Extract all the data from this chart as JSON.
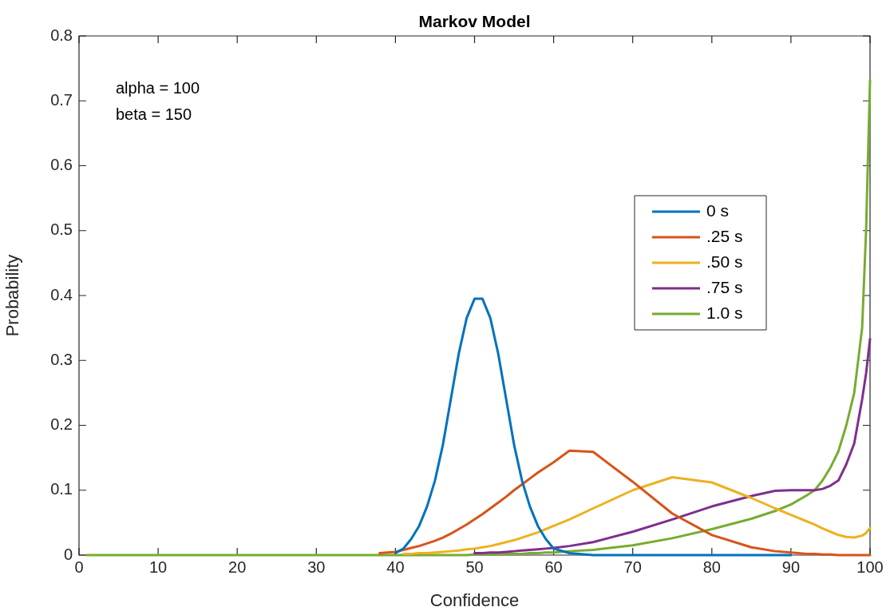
{
  "chart_data": {
    "type": "line",
    "title": "Markov Model",
    "xlabel": "Confidence",
    "ylabel": "Probability",
    "x": [
      1,
      35,
      38,
      40,
      41,
      42,
      43,
      44,
      45,
      46,
      47,
      48,
      49,
      50,
      51,
      52,
      53,
      54,
      55,
      56,
      57,
      58,
      59,
      60,
      62,
      65,
      70,
      75,
      80,
      85,
      88,
      90,
      92,
      93,
      94,
      95,
      96,
      97,
      98,
      99,
      99.5,
      100
    ],
    "series": [
      {
        "name": "0 s",
        "color": "#0072bd",
        "values": [
          null,
          null,
          null,
          0.003,
          0.01,
          0.025,
          0.045,
          0.075,
          0.115,
          0.17,
          0.24,
          0.31,
          0.365,
          0.395,
          0.395,
          0.365,
          0.31,
          0.24,
          0.17,
          0.115,
          0.075,
          0.045,
          0.025,
          0.01,
          0.003,
          0,
          0,
          0,
          0,
          0,
          0,
          0,
          null,
          null,
          null,
          null,
          null,
          null,
          null,
          null,
          null,
          null
        ]
      },
      {
        "name": ".25 s",
        "color": "#d95319",
        "values": [
          null,
          null,
          0.003,
          0.005,
          0.008,
          0.011,
          0.014,
          0.018,
          0.022,
          0.027,
          0.033,
          0.04,
          0.047,
          0.055,
          0.063,
          0.072,
          0.081,
          0.09,
          0.1,
          0.109,
          0.118,
          0.127,
          0.135,
          0.143,
          0.161,
          0.159,
          0.113,
          0.064,
          0.031,
          0.012,
          0.006,
          0.004,
          0.002,
          0.002,
          0.001,
          0.001,
          0,
          0,
          0,
          0,
          0,
          0
        ]
      },
      {
        "name": ".50 s",
        "color": "#edb120",
        "values": [
          null,
          null,
          null,
          null,
          0.002,
          0.002,
          0.003,
          0.003,
          0.004,
          0.005,
          0.006,
          0.007,
          0.009,
          0.01,
          0.012,
          0.014,
          0.017,
          0.02,
          0.023,
          0.027,
          0.031,
          0.035,
          0.04,
          0.045,
          0.055,
          0.072,
          0.1,
          0.12,
          0.112,
          0.088,
          0.072,
          0.062,
          0.052,
          0.047,
          0.041,
          0.036,
          0.031,
          0.028,
          0.027,
          0.03,
          0.034,
          0.042
        ]
      },
      {
        "name": ".75 s",
        "color": "#7e2f8e",
        "values": [
          null,
          null,
          null,
          null,
          null,
          null,
          null,
          null,
          null,
          null,
          null,
          null,
          null,
          0.003,
          0.003,
          0.004,
          0.004,
          0.005,
          0.006,
          0.007,
          0.008,
          0.009,
          0.01,
          0.011,
          0.014,
          0.02,
          0.036,
          0.055,
          0.075,
          0.091,
          0.099,
          0.1,
          0.1,
          0.1,
          0.102,
          0.107,
          0.115,
          0.14,
          0.172,
          0.24,
          0.28,
          0.333
        ]
      },
      {
        "name": "1.0 s",
        "color": "#77ac30",
        "values": [
          0,
          0,
          0,
          0,
          0,
          0,
          0,
          0,
          0,
          0,
          0,
          0,
          0,
          0.001,
          0.001,
          0.001,
          0.001,
          0.002,
          0.002,
          0.002,
          0.003,
          0.003,
          0.004,
          0.004,
          0.006,
          0.008,
          0.015,
          0.026,
          0.04,
          0.056,
          0.068,
          0.078,
          0.092,
          0.1,
          0.115,
          0.135,
          0.16,
          0.2,
          0.25,
          0.35,
          0.5,
          0.732
        ]
      }
    ],
    "xlim": [
      0,
      100
    ],
    "xticks": [
      0,
      10,
      20,
      30,
      40,
      50,
      60,
      70,
      80,
      90,
      100
    ],
    "ylim": [
      0,
      0.8
    ],
    "yticks": [
      0,
      0.1,
      0.2,
      0.3,
      0.4,
      0.5,
      0.6,
      0.7,
      0.8
    ],
    "annotations": [
      "alpha = 100",
      "beta = 150"
    ],
    "grid": false,
    "legend": "right",
    "marker": "none",
    "line_style": "solid"
  }
}
